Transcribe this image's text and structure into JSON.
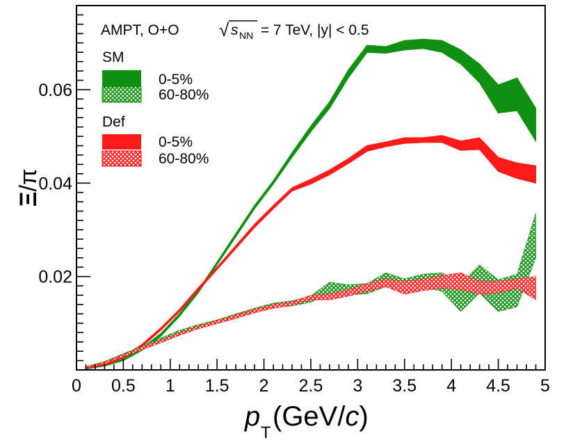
{
  "chart_data": {
    "type": "area",
    "annotation": {
      "prefix": "AMPT, O+O ",
      "sqrt_symbol": "√",
      "s_letter": "s",
      "s_subscript": "NN",
      "suffix": " = 7 TeV, |y| < 0.5"
    },
    "xlabel": {
      "p": "p",
      "sub": "T",
      "unit_open": "(GeV/",
      "unit_c": "c",
      "unit_close": ")"
    },
    "ylabel": {
      "numerator": "Ξ",
      "slash": "/",
      "denominator": "π"
    },
    "xlim": [
      0,
      5
    ],
    "ylim": [
      0,
      0.078
    ],
    "x_major_ticks": [
      0,
      0.5,
      1,
      1.5,
      2,
      2.5,
      3,
      3.5,
      4,
      4.5,
      5
    ],
    "x_tick_labels": [
      "0",
      "0.5",
      "1",
      "1.5",
      "2",
      "2.5",
      "3",
      "3.5",
      "4",
      "4.5",
      "5"
    ],
    "y_major_ticks": [
      0.02,
      0.04,
      0.06
    ],
    "y_tick_labels": [
      "0.02",
      "0.04",
      "0.06"
    ],
    "legend_groups": [
      {
        "title": "SM",
        "entries": [
          {
            "label": "0-5%",
            "series": "sm_central"
          },
          {
            "label": "60-80%",
            "series": "sm_peripheral"
          }
        ]
      },
      {
        "title": "Def",
        "entries": [
          {
            "label": "0-5%",
            "series": "def_central"
          },
          {
            "label": "60-80%",
            "series": "def_peripheral"
          }
        ]
      }
    ],
    "series": [
      {
        "id": "sm_central",
        "name": "SM 0-5%",
        "color": "#109010",
        "fill": "solid",
        "x": [
          0.1,
          0.3,
          0.5,
          0.7,
          0.9,
          1.1,
          1.3,
          1.5,
          1.7,
          1.9,
          2.1,
          2.3,
          2.5,
          2.7,
          2.9,
          3.1,
          3.3,
          3.5,
          3.7,
          3.9,
          4.1,
          4.3,
          4.5,
          4.7,
          4.9
        ],
        "low": [
          0.0002,
          0.0008,
          0.002,
          0.0042,
          0.0072,
          0.0115,
          0.0165,
          0.0225,
          0.0285,
          0.0345,
          0.0398,
          0.0455,
          0.051,
          0.056,
          0.0625,
          0.068,
          0.0678,
          0.0685,
          0.0688,
          0.068,
          0.0655,
          0.0615,
          0.055,
          0.0555,
          0.049
        ],
        "high": [
          0.0004,
          0.001,
          0.0024,
          0.0047,
          0.0078,
          0.0121,
          0.0171,
          0.0231,
          0.0292,
          0.0352,
          0.0405,
          0.0465,
          0.0522,
          0.0574,
          0.0642,
          0.0695,
          0.0692,
          0.0705,
          0.0708,
          0.0705,
          0.0685,
          0.0655,
          0.061,
          0.0625,
          0.056
        ]
      },
      {
        "id": "def_central",
        "name": "Def 0-5%",
        "color": "#ff1a1a",
        "fill": "solid",
        "x": [
          0.1,
          0.3,
          0.5,
          0.7,
          0.9,
          1.1,
          1.3,
          1.5,
          1.7,
          1.9,
          2.1,
          2.3,
          2.5,
          2.7,
          2.9,
          3.1,
          3.3,
          3.5,
          3.7,
          3.9,
          4.1,
          4.3,
          4.5,
          4.7,
          4.9
        ],
        "low": [
          0.0003,
          0.001,
          0.0025,
          0.005,
          0.0085,
          0.0125,
          0.017,
          0.0215,
          0.026,
          0.0305,
          0.0345,
          0.0383,
          0.0398,
          0.0418,
          0.0442,
          0.0468,
          0.0478,
          0.0485,
          0.0487,
          0.0487,
          0.047,
          0.0472,
          0.0425,
          0.041,
          0.04
        ],
        "high": [
          0.0005,
          0.0013,
          0.0029,
          0.0055,
          0.009,
          0.013,
          0.0176,
          0.022,
          0.0266,
          0.0312,
          0.0352,
          0.039,
          0.0408,
          0.0428,
          0.0452,
          0.048,
          0.0488,
          0.0497,
          0.0497,
          0.0502,
          0.049,
          0.0497,
          0.0455,
          0.0443,
          0.0437
        ]
      },
      {
        "id": "sm_peripheral",
        "name": "SM 60-80%",
        "color": "#109010",
        "fill": "hatched",
        "x": [
          0.1,
          0.3,
          0.5,
          0.7,
          0.9,
          1.1,
          1.3,
          1.5,
          1.7,
          1.9,
          2.1,
          2.3,
          2.5,
          2.7,
          2.9,
          3.1,
          3.3,
          3.5,
          3.7,
          3.9,
          4.1,
          4.3,
          4.5,
          4.7,
          4.9
        ],
        "low": [
          0.0004,
          0.0014,
          0.003,
          0.0045,
          0.0062,
          0.0078,
          0.009,
          0.01,
          0.0112,
          0.0125,
          0.0133,
          0.0137,
          0.0145,
          0.0163,
          0.016,
          0.0163,
          0.0178,
          0.0172,
          0.0178,
          0.0168,
          0.0125,
          0.0165,
          0.0125,
          0.0135,
          0.024
        ],
        "high": [
          0.0007,
          0.0018,
          0.0035,
          0.0051,
          0.0068,
          0.0085,
          0.0097,
          0.0107,
          0.012,
          0.0132,
          0.0143,
          0.0148,
          0.0158,
          0.0188,
          0.0182,
          0.0185,
          0.0208,
          0.0195,
          0.0205,
          0.0208,
          0.0185,
          0.0225,
          0.0193,
          0.0205,
          0.0335
        ]
      },
      {
        "id": "def_peripheral",
        "name": "Def 60-80%",
        "color": "#ff1a1a",
        "fill": "hatched",
        "x": [
          0.1,
          0.3,
          0.5,
          0.7,
          0.9,
          1.1,
          1.3,
          1.5,
          1.7,
          1.9,
          2.1,
          2.3,
          2.5,
          2.7,
          2.9,
          3.1,
          3.3,
          3.5,
          3.7,
          3.9,
          4.1,
          4.3,
          4.5,
          4.7,
          4.9
        ],
        "low": [
          0.0004,
          0.0013,
          0.0028,
          0.0043,
          0.0058,
          0.0074,
          0.0088,
          0.0099,
          0.011,
          0.0122,
          0.0132,
          0.0138,
          0.015,
          0.015,
          0.0158,
          0.0168,
          0.0178,
          0.0162,
          0.017,
          0.0175,
          0.0172,
          0.0162,
          0.0165,
          0.0175,
          0.015
        ],
        "high": [
          0.0006,
          0.0017,
          0.0033,
          0.0049,
          0.0064,
          0.008,
          0.0094,
          0.0106,
          0.0118,
          0.013,
          0.014,
          0.0146,
          0.016,
          0.0163,
          0.0172,
          0.0185,
          0.0195,
          0.019,
          0.0195,
          0.0202,
          0.0208,
          0.019,
          0.019,
          0.0195,
          0.02
        ]
      }
    ]
  }
}
